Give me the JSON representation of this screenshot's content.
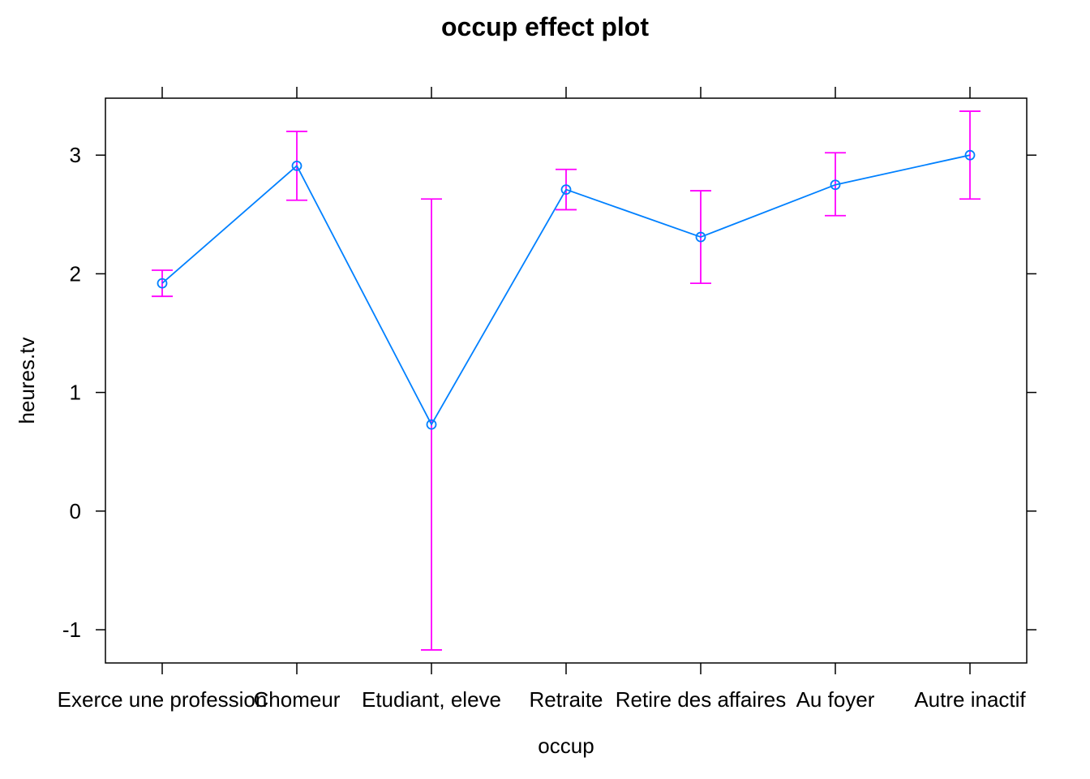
{
  "chart_data": {
    "type": "line",
    "title": "occup effect plot",
    "xlabel": "occup",
    "ylabel": "heures.tv",
    "categories": [
      "Exerce une profession",
      "Chomeur",
      "Etudiant, eleve",
      "Retraite",
      "Retire des affaires",
      "Au foyer",
      "Autre inactif"
    ],
    "series": [
      {
        "values": [
          1.92,
          2.91,
          0.73,
          2.71,
          2.31,
          2.75,
          3.0
        ],
        "lower": [
          1.81,
          2.62,
          -1.17,
          2.54,
          1.92,
          2.49,
          2.63
        ],
        "upper": [
          2.03,
          3.2,
          2.63,
          2.88,
          2.7,
          3.02,
          3.37
        ]
      }
    ],
    "ylim": [
      -1.28,
      3.48
    ],
    "yticks": [
      "-1",
      "0",
      "1",
      "2",
      "3"
    ],
    "grid": false,
    "colors": {
      "line": "#0080ff",
      "error_bars": "#ff00ff",
      "axis": "#000000"
    }
  }
}
